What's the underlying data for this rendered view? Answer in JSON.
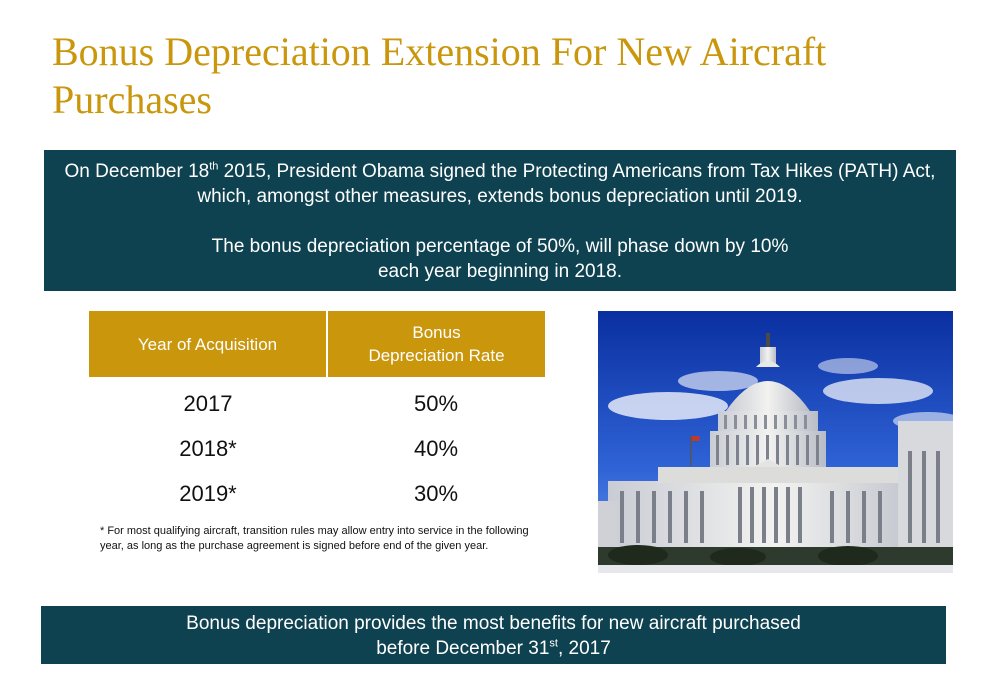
{
  "title": "Bonus Depreciation Extension For New Aircraft Purchases",
  "intro": {
    "p1_a": "On December 18",
    "p1_sup": "th",
    "p1_b": " 2015, President Obama signed the Protecting Americans from Tax Hikes (PATH) Act, which, amongst other measures, extends bonus depreciation until 2019.",
    "p2_line1": "The bonus depreciation percentage of 50%, will phase down by 10%",
    "p2_line2": "each year beginning in 2018."
  },
  "table": {
    "headers": [
      "Year of Acquisition",
      "Bonus",
      "Depreciation Rate"
    ],
    "rows": [
      {
        "year": "2017",
        "rate": "50%"
      },
      {
        "year": "2018*",
        "rate": "40%"
      },
      {
        "year": "2019*",
        "rate": "30%"
      }
    ]
  },
  "footnote": "* For most qualifying aircraft, transition rules may allow entry into service in the following year, as long as the purchase agreement is signed before end of the given year.",
  "bottom": {
    "line1": "Bonus depreciation provides the most benefits for new aircraft purchased",
    "line2_a": "before December 31",
    "line2_sup": "st",
    "line2_b": ", 2017"
  },
  "image": {
    "subject": "us-capitol-photo"
  },
  "colors": {
    "title": "#c9960c",
    "box": "#0e4250",
    "table_header": "#c9960c"
  }
}
